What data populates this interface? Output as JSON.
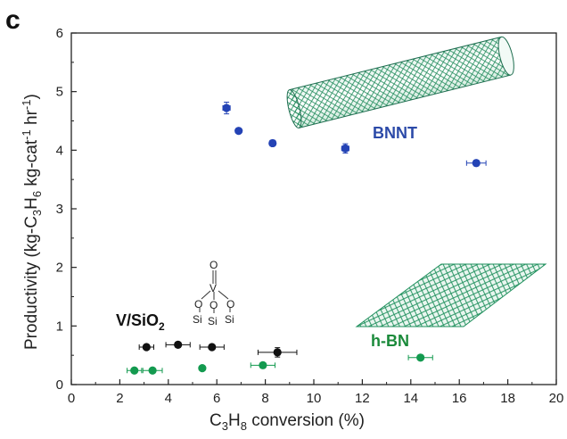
{
  "chart_data": {
    "type": "scatter",
    "panel_label": "c",
    "xlabel": {
      "main": "C",
      "sub1": "3",
      "mid": "H",
      "sub2": "8",
      "rest": " conversion (%)"
    },
    "ylabel": {
      "a": "Productivity (kg-C",
      "s1": "3",
      "b": "H",
      "s2": "6",
      "c": " kg-cat",
      "sup1": "-1",
      "d": " hr",
      "sup2": "-1",
      "e": ")"
    },
    "xlim": [
      0,
      20
    ],
    "ylim": [
      0,
      6
    ],
    "x_ticks": [
      0,
      2,
      4,
      6,
      8,
      10,
      12,
      14,
      16,
      18,
      20
    ],
    "y_ticks": [
      0,
      1,
      2,
      3,
      4,
      5,
      6
    ],
    "grid": false,
    "series": [
      {
        "name": "BNNT",
        "color": "#2443b5",
        "label_color": "#2c4aa8",
        "points": [
          {
            "x": 6.4,
            "y": 4.72,
            "xerr": 0.15,
            "yerr": 0.1
          },
          {
            "x": 6.9,
            "y": 4.33,
            "xerr": 0,
            "yerr": 0
          },
          {
            "x": 8.3,
            "y": 4.12,
            "xerr": 0.12,
            "yerr": 0.05
          },
          {
            "x": 11.3,
            "y": 4.03,
            "xerr": 0.15,
            "yerr": 0.08
          },
          {
            "x": 16.7,
            "y": 3.78,
            "xerr": 0.4,
            "yerr": 0.05
          }
        ]
      },
      {
        "name": "h-BN",
        "color": "#139a4f",
        "label_color": "#1a8a3a",
        "points": [
          {
            "x": 2.6,
            "y": 0.24,
            "xerr": 0.3,
            "yerr": 0
          },
          {
            "x": 3.35,
            "y": 0.24,
            "xerr": 0.4,
            "yerr": 0
          },
          {
            "x": 5.4,
            "y": 0.28,
            "xerr": 0,
            "yerr": 0
          },
          {
            "x": 7.9,
            "y": 0.33,
            "xerr": 0.5,
            "yerr": 0
          },
          {
            "x": 14.4,
            "y": 0.46,
            "xerr": 0.5,
            "yerr": 0
          }
        ]
      },
      {
        "name": "V/SiO2",
        "name_main": "V/SiO",
        "name_sub": "2",
        "color": "#111111",
        "label_color": "#111111",
        "points": [
          {
            "x": 3.1,
            "y": 0.64,
            "xerr": 0.3,
            "yerr": 0
          },
          {
            "x": 4.4,
            "y": 0.68,
            "xerr": 0.5,
            "yerr": 0
          },
          {
            "x": 5.8,
            "y": 0.64,
            "xerr": 0.5,
            "yerr": 0
          },
          {
            "x": 8.5,
            "y": 0.55,
            "xerr": 0.8,
            "yerr": 0.08
          }
        ]
      }
    ],
    "structure_text": {
      "o_top": "O",
      "v": "V",
      "o_left": "O",
      "o_mid": "O",
      "o_right": "O",
      "si_left": "Si",
      "si_mid": "Si",
      "si_right": "Si"
    }
  }
}
